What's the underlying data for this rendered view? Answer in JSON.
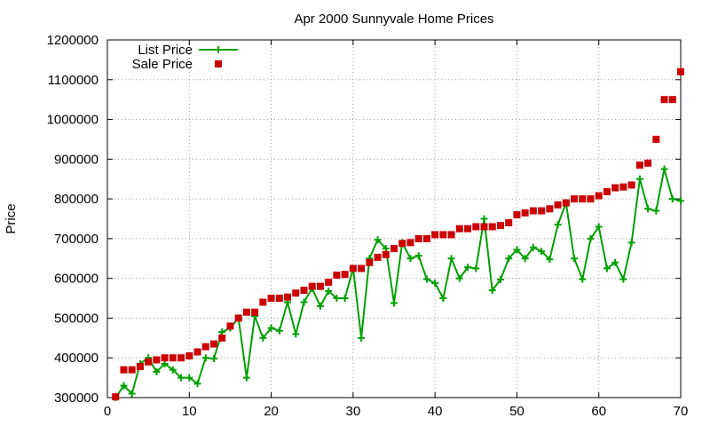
{
  "chart_data": {
    "type": "line",
    "title": "Apr 2000 Sunnyvale Home Prices",
    "xlabel": "",
    "ylabel": "Price",
    "xlim": [
      0,
      70
    ],
    "ylim": [
      300000,
      1200000
    ],
    "xticks": [
      0,
      10,
      20,
      30,
      40,
      50,
      60,
      70
    ],
    "yticks": [
      300000,
      400000,
      500000,
      600000,
      700000,
      800000,
      900000,
      1000000,
      1100000,
      1200000
    ],
    "grid": true,
    "legend_position": "top-left",
    "series": [
      {
        "name": "List Price",
        "style": "line-plus",
        "color": "#00a000",
        "values": [
          [
            1,
            300000
          ],
          [
            2,
            330000
          ],
          [
            3,
            310000
          ],
          [
            4,
            385000
          ],
          [
            5,
            400000
          ],
          [
            6,
            365000
          ],
          [
            7,
            385000
          ],
          [
            8,
            370000
          ],
          [
            9,
            350000
          ],
          [
            10,
            350000
          ],
          [
            11,
            335000
          ],
          [
            12,
            400000
          ],
          [
            13,
            398000
          ],
          [
            14,
            465000
          ],
          [
            15,
            475000
          ],
          [
            16,
            500000
          ],
          [
            17,
            350000
          ],
          [
            18,
            505000
          ],
          [
            19,
            450000
          ],
          [
            20,
            475000
          ],
          [
            21,
            468000
          ],
          [
            22,
            540000
          ],
          [
            23,
            460000
          ],
          [
            24,
            540000
          ],
          [
            25,
            575000
          ],
          [
            26,
            530000
          ],
          [
            27,
            568000
          ],
          [
            28,
            550000
          ],
          [
            29,
            550000
          ],
          [
            30,
            625000
          ],
          [
            31,
            450000
          ],
          [
            32,
            650000
          ],
          [
            33,
            697000
          ],
          [
            34,
            675000
          ],
          [
            35,
            538000
          ],
          [
            36,
            690000
          ],
          [
            37,
            650000
          ],
          [
            38,
            657000
          ],
          [
            39,
            598000
          ],
          [
            40,
            588000
          ],
          [
            41,
            550000
          ],
          [
            42,
            650000
          ],
          [
            43,
            600000
          ],
          [
            44,
            628000
          ],
          [
            45,
            625000
          ],
          [
            46,
            750000
          ],
          [
            47,
            570000
          ],
          [
            48,
            597000
          ],
          [
            49,
            650000
          ],
          [
            50,
            672000
          ],
          [
            51,
            650000
          ],
          [
            52,
            678000
          ],
          [
            53,
            668000
          ],
          [
            54,
            648000
          ],
          [
            55,
            735000
          ],
          [
            56,
            790000
          ],
          [
            57,
            650000
          ],
          [
            58,
            598000
          ],
          [
            59,
            700000
          ],
          [
            60,
            730000
          ],
          [
            61,
            625000
          ],
          [
            62,
            640000
          ],
          [
            63,
            598000
          ],
          [
            64,
            690000
          ],
          [
            65,
            850000
          ],
          [
            66,
            775000
          ],
          [
            67,
            770000
          ],
          [
            68,
            875000
          ],
          [
            69,
            800000
          ],
          [
            70,
            795000
          ]
        ]
      },
      {
        "name": "Sale Price",
        "style": "square-markers",
        "color": "#cc0000",
        "values": [
          [
            1,
            302000
          ],
          [
            2,
            370000
          ],
          [
            3,
            370000
          ],
          [
            4,
            378000
          ],
          [
            5,
            390000
          ],
          [
            6,
            395000
          ],
          [
            7,
            400000
          ],
          [
            8,
            400000
          ],
          [
            9,
            400000
          ],
          [
            10,
            405000
          ],
          [
            11,
            415000
          ],
          [
            12,
            428000
          ],
          [
            13,
            435000
          ],
          [
            14,
            450000
          ],
          [
            15,
            480000
          ],
          [
            16,
            500000
          ],
          [
            17,
            515000
          ],
          [
            18,
            515000
          ],
          [
            19,
            540000
          ],
          [
            20,
            550000
          ],
          [
            21,
            550000
          ],
          [
            22,
            553000
          ],
          [
            23,
            563000
          ],
          [
            24,
            570000
          ],
          [
            25,
            580000
          ],
          [
            26,
            580000
          ],
          [
            27,
            590000
          ],
          [
            28,
            608000
          ],
          [
            29,
            610000
          ],
          [
            30,
            625000
          ],
          [
            31,
            625000
          ],
          [
            32,
            640000
          ],
          [
            33,
            653000
          ],
          [
            34,
            660000
          ],
          [
            35,
            675000
          ],
          [
            36,
            688000
          ],
          [
            37,
            690000
          ],
          [
            38,
            700000
          ],
          [
            39,
            700000
          ],
          [
            40,
            710000
          ],
          [
            41,
            710000
          ],
          [
            42,
            710000
          ],
          [
            43,
            725000
          ],
          [
            44,
            725000
          ],
          [
            45,
            730000
          ],
          [
            46,
            730000
          ],
          [
            47,
            730000
          ],
          [
            48,
            733000
          ],
          [
            49,
            740000
          ],
          [
            50,
            760000
          ],
          [
            51,
            765000
          ],
          [
            52,
            770000
          ],
          [
            53,
            770000
          ],
          [
            54,
            775000
          ],
          [
            55,
            785000
          ],
          [
            56,
            790000
          ],
          [
            57,
            800000
          ],
          [
            58,
            800000
          ],
          [
            59,
            800000
          ],
          [
            60,
            808000
          ],
          [
            61,
            818000
          ],
          [
            62,
            828000
          ],
          [
            63,
            830000
          ],
          [
            64,
            835000
          ],
          [
            65,
            885000
          ],
          [
            66,
            890000
          ],
          [
            67,
            950000
          ],
          [
            68,
            1050000
          ],
          [
            69,
            1050000
          ],
          [
            70,
            1120000
          ]
        ]
      }
    ]
  }
}
